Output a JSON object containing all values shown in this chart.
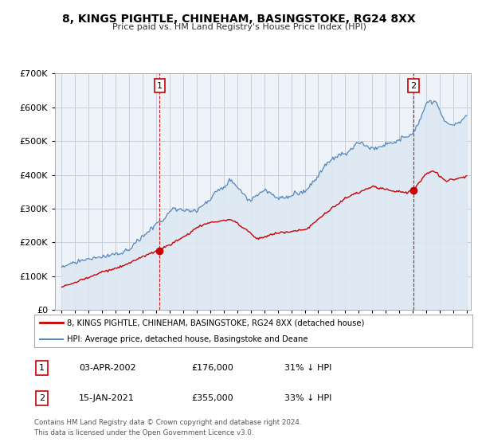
{
  "title": "8, KINGS PIGHTLE, CHINEHAM, BASINGSTOKE, RG24 8XX",
  "subtitle": "Price paid vs. HM Land Registry's House Price Index (HPI)",
  "legend_line1": "8, KINGS PIGHTLE, CHINEHAM, BASINGSTOKE, RG24 8XX (detached house)",
  "legend_line2": "HPI: Average price, detached house, Basingstoke and Deane",
  "annotation1_label": "1",
  "annotation1_date": "03-APR-2002",
  "annotation1_price": "£176,000",
  "annotation1_hpi": "31% ↓ HPI",
  "annotation2_label": "2",
  "annotation2_date": "15-JAN-2021",
  "annotation2_price": "£355,000",
  "annotation2_hpi": "33% ↓ HPI",
  "footer1": "Contains HM Land Registry data © Crown copyright and database right 2024.",
  "footer2": "This data is licensed under the Open Government Licence v3.0.",
  "price_color": "#cc0000",
  "hpi_color": "#5588bb",
  "hpi_fill_color": "#dde8f3",
  "plot_bg_color": "#eef3f9",
  "background_color": "#ffffff",
  "grid_color": "#c0c8d8",
  "ylim": [
    0,
    700000
  ],
  "xlim_start": 1994.5,
  "xlim_end": 2025.3,
  "marker1_x": 2002.25,
  "marker1_y": 176000,
  "marker2_x": 2021.04,
  "marker2_y": 355000,
  "vline1_x": 2002.25,
  "vline2_x": 2021.04
}
